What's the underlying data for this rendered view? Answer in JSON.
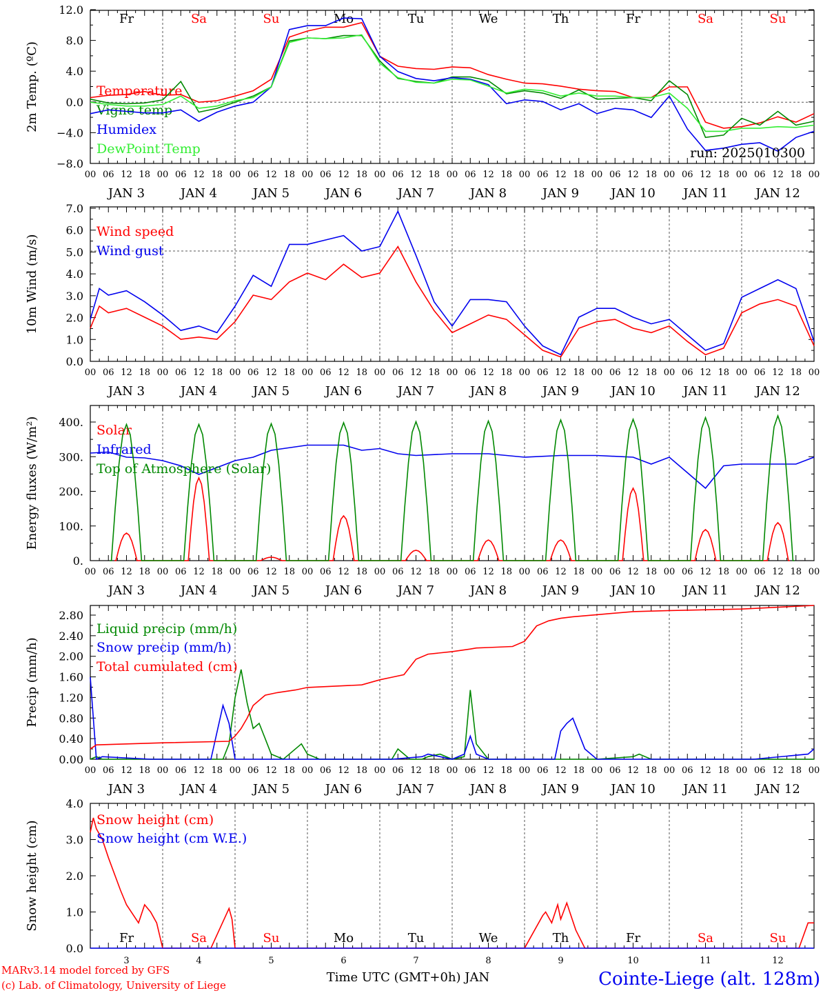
{
  "run_label": "run: 2025010300",
  "footer": {
    "model": "MARv3.14 model forced by GFS",
    "lab": "(c) Lab. of Climatology, University of Liege",
    "time_axis": "Time UTC (GMT+0h) JAN",
    "station": "Cointe-Liege (alt. 128m)"
  },
  "colors": {
    "red": "#ff0000",
    "green": "#008800",
    "blue": "#0000ee",
    "lightgreen": "#33ee33",
    "weekend": "#ff0000",
    "weekday": "#000000"
  },
  "hour_ticks": [
    "00",
    "06",
    "12",
    "18"
  ],
  "days": [
    {
      "date": "JAN  3",
      "short": "3",
      "dow": "Fr",
      "weekend": false
    },
    {
      "date": "JAN  4",
      "short": "4",
      "dow": "Sa",
      "weekend": true
    },
    {
      "date": "JAN  5",
      "short": "5",
      "dow": "Su",
      "weekend": true
    },
    {
      "date": "JAN  6",
      "short": "6",
      "dow": "Mo",
      "weekend": false
    },
    {
      "date": "JAN  7",
      "short": "7",
      "dow": "Tu",
      "weekend": false
    },
    {
      "date": "JAN  8",
      "short": "8",
      "dow": "We",
      "weekend": false
    },
    {
      "date": "JAN  9",
      "short": "9",
      "dow": "Th",
      "weekend": false
    },
    {
      "date": "JAN 10",
      "short": "10",
      "dow": "Fr",
      "weekend": false
    },
    {
      "date": "JAN 11",
      "short": "11",
      "dow": "Sa",
      "weekend": true
    },
    {
      "date": "JAN 12",
      "short": "12",
      "dow": "Su",
      "weekend": true
    }
  ],
  "chart_data": [
    {
      "type": "line",
      "ylabel": "2m Temp. (ºC)",
      "ylim": [
        -8,
        12
      ],
      "ytick_labels": [
        "12.0",
        "8.0",
        "4.0",
        "0.0",
        "−4.0",
        "−8.0"
      ],
      "ref_line": 0,
      "x_unit": "hours since JAN 3 00 UTC",
      "series": [
        {
          "name": "Temperature",
          "color": "red",
          "x": [
            0,
            6,
            12,
            18,
            24,
            30,
            36,
            42,
            48,
            54,
            60,
            66,
            72,
            78,
            84,
            90,
            96,
            102,
            108,
            114,
            120,
            126,
            132,
            138,
            144,
            150,
            156,
            162,
            168,
            174,
            180,
            186,
            192,
            198,
            204,
            210,
            216,
            222,
            228,
            234,
            240
          ],
          "y": [
            0.6,
            0.9,
            1.0,
            1.4,
            0.9,
            1.0,
            0.0,
            0.2,
            0.8,
            1.5,
            3.0,
            8.5,
            9.3,
            9.8,
            9.8,
            10.4,
            6.0,
            4.7,
            4.4,
            4.3,
            4.6,
            4.5,
            3.6,
            3.0,
            2.5,
            2.4,
            2.1,
            1.7,
            1.5,
            1.4,
            0.6,
            0.6,
            2.0,
            2.0,
            -2.6,
            -3.4,
            -3.2,
            -2.7,
            -1.9,
            -2.6,
            -1.5
          ]
        },
        {
          "name": "Vigne temp",
          "color": "green",
          "x": [
            0,
            6,
            12,
            18,
            24,
            30,
            36,
            42,
            48,
            54,
            60,
            66,
            72,
            78,
            84,
            90,
            96,
            102,
            108,
            114,
            120,
            126,
            132,
            138,
            144,
            150,
            156,
            162,
            168,
            174,
            180,
            186,
            192,
            198,
            204,
            210,
            216,
            222,
            228,
            234,
            240
          ],
          "y": [
            0.4,
            -0.1,
            -0.2,
            -0.1,
            0.3,
            2.7,
            -1.3,
            -0.8,
            0.0,
            0.8,
            2.0,
            8.0,
            8.4,
            8.3,
            8.7,
            8.7,
            5.4,
            3.1,
            2.7,
            2.5,
            3.3,
            3.3,
            2.8,
            1.1,
            1.5,
            1.2,
            0.5,
            1.6,
            0.4,
            0.5,
            0.6,
            0.2,
            2.8,
            1.0,
            -4.6,
            -4.3,
            -2.1,
            -3.0,
            -1.2,
            -3.0,
            -2.5
          ]
        },
        {
          "name": "Humidex",
          "color": "blue",
          "x": [
            0,
            6,
            12,
            18,
            24,
            30,
            36,
            42,
            48,
            54,
            60,
            66,
            72,
            78,
            84,
            90,
            96,
            102,
            108,
            114,
            120,
            126,
            132,
            138,
            144,
            150,
            156,
            162,
            168,
            174,
            180,
            186,
            192,
            198,
            204,
            210,
            216,
            222,
            228,
            234,
            240
          ],
          "y": [
            -1.5,
            -1.0,
            -1.2,
            -1.4,
            -1.4,
            -1.0,
            -2.5,
            -1.3,
            -0.5,
            0.0,
            2.0,
            9.5,
            10.0,
            10.0,
            11.0,
            10.9,
            6.0,
            4.0,
            3.1,
            2.8,
            3.2,
            3.0,
            2.3,
            -0.2,
            0.3,
            0.1,
            -1.0,
            -0.2,
            -1.5,
            -0.8,
            -1.0,
            -2.0,
            0.8,
            -3.5,
            -6.3,
            -6.0,
            -5.5,
            -5.3,
            -6.4,
            -4.6,
            -3.8
          ]
        },
        {
          "name": "DewPoint Temp",
          "color": "lightgreen",
          "x": [
            0,
            6,
            12,
            18,
            24,
            30,
            36,
            42,
            48,
            54,
            60,
            66,
            72,
            78,
            84,
            90,
            96,
            102,
            108,
            114,
            120,
            126,
            132,
            138,
            144,
            150,
            156,
            162,
            168,
            174,
            180,
            186,
            192,
            198,
            204,
            210,
            216,
            222,
            228,
            234,
            240
          ],
          "y": [
            0.0,
            -0.3,
            -0.5,
            -0.5,
            -0.3,
            0.8,
            -0.8,
            -0.5,
            0.2,
            0.6,
            2.0,
            7.8,
            8.4,
            8.3,
            8.4,
            8.8,
            5.1,
            3.2,
            2.6,
            2.5,
            3.0,
            2.9,
            2.1,
            1.2,
            1.7,
            1.5,
            0.8,
            1.2,
            0.8,
            0.8,
            0.6,
            0.6,
            1.2,
            -0.8,
            -3.8,
            -3.8,
            -3.4,
            -3.4,
            -3.2,
            -3.3,
            -3.0
          ]
        }
      ]
    },
    {
      "type": "line",
      "ylabel": "10m Wind (m/s)",
      "ylim": [
        0,
        7
      ],
      "ytick_labels": [
        "7.0",
        "6.0",
        "5.0",
        "4.0",
        "3.0",
        "2.0",
        "1.0",
        "0.0"
      ],
      "ref_line": 5,
      "x_unit": "hours since JAN 3 00 UTC",
      "series": [
        {
          "name": "Wind speed",
          "color": "red",
          "x": [
            0,
            3,
            6,
            12,
            18,
            24,
            30,
            36,
            42,
            48,
            54,
            60,
            66,
            72,
            78,
            84,
            90,
            96,
            102,
            108,
            114,
            120,
            126,
            132,
            138,
            144,
            150,
            156,
            162,
            168,
            174,
            180,
            186,
            192,
            198,
            204,
            210,
            216,
            222,
            228,
            234,
            240
          ],
          "y": [
            1.5,
            2.5,
            2.2,
            2.4,
            2.0,
            1.6,
            1.0,
            1.1,
            1.0,
            1.8,
            3.0,
            2.8,
            3.6,
            4.0,
            3.7,
            4.4,
            3.8,
            4.0,
            5.2,
            3.6,
            2.3,
            1.3,
            1.7,
            2.1,
            1.9,
            1.2,
            0.5,
            0.2,
            1.5,
            1.8,
            1.9,
            1.5,
            1.3,
            1.6,
            0.9,
            0.3,
            0.6,
            2.2,
            2.6,
            2.8,
            2.5,
            0.7
          ]
        },
        {
          "name": "Wind gust",
          "color": "blue",
          "x": [
            0,
            3,
            6,
            12,
            18,
            24,
            30,
            36,
            42,
            48,
            54,
            60,
            66,
            72,
            78,
            84,
            90,
            96,
            102,
            108,
            114,
            120,
            126,
            132,
            138,
            144,
            150,
            156,
            162,
            168,
            174,
            180,
            186,
            192,
            198,
            204,
            210,
            216,
            222,
            228,
            234,
            240
          ],
          "y": [
            1.9,
            3.3,
            3.0,
            3.2,
            2.7,
            2.1,
            1.4,
            1.6,
            1.3,
            2.5,
            3.9,
            3.4,
            5.3,
            5.3,
            5.5,
            5.7,
            5.0,
            5.2,
            6.8,
            4.8,
            2.7,
            1.6,
            2.8,
            2.8,
            2.7,
            1.6,
            0.7,
            0.3,
            2.0,
            2.4,
            2.4,
            2.0,
            1.7,
            1.9,
            1.2,
            0.5,
            0.8,
            2.9,
            3.3,
            3.7,
            3.3,
            0.9
          ]
        }
      ]
    },
    {
      "type": "line",
      "ylabel": "Energy fluxes (W/m²)",
      "ylim": [
        0,
        450
      ],
      "ytick_labels": [
        "400.",
        "300.",
        "200.",
        "100.",
        "0."
      ],
      "x_unit": "hours since JAN 3 00 UTC",
      "series": [
        {
          "name": "Solar",
          "color": "red",
          "daily_peaks": [
            80,
            240,
            10,
            130,
            30,
            60,
            60,
            210,
            90,
            110
          ]
        },
        {
          "name": "Infrared",
          "color": "blue",
          "x": [
            0,
            6,
            12,
            18,
            24,
            30,
            36,
            42,
            48,
            54,
            60,
            72,
            84,
            90,
            96,
            102,
            108,
            120,
            132,
            144,
            156,
            168,
            180,
            186,
            192,
            198,
            204,
            210,
            216,
            228,
            234,
            240
          ],
          "y": [
            312,
            315,
            300,
            298,
            290,
            275,
            250,
            270,
            290,
            300,
            320,
            335,
            335,
            320,
            325,
            310,
            305,
            310,
            310,
            300,
            305,
            305,
            300,
            280,
            300,
            255,
            210,
            275,
            280,
            280,
            280,
            300
          ]
        },
        {
          "name": "Top of Atmosphere (Solar)",
          "color": "green",
          "daily_peaks": [
            395,
            395,
            397,
            400,
            403,
            405,
            408,
            410,
            415,
            420
          ]
        }
      ]
    },
    {
      "type": "line",
      "ylabel": "Precip (mm/h)",
      "ylim": [
        0,
        3.0
      ],
      "ytick_labels": [
        "2.80",
        "2.40",
        "2.00",
        "1.60",
        "1.20",
        "0.80",
        "0.40",
        "0.00"
      ],
      "x_unit": "hours since JAN 3 00 UTC",
      "series": [
        {
          "name": "Liquid precip (mm/h)",
          "color": "green",
          "x": [
            0,
            2,
            4,
            20,
            40,
            44,
            46,
            48,
            50,
            52,
            54,
            56,
            58,
            60,
            64,
            70,
            72,
            76,
            90,
            96,
            100,
            102,
            106,
            110,
            112,
            116,
            120,
            124,
            126,
            128,
            132,
            144,
            168,
            180,
            182,
            186,
            190,
            200,
            220,
            240
          ],
          "y": [
            0.0,
            0.05,
            0.0,
            0.0,
            0.0,
            0.0,
            0.3,
            1.2,
            1.75,
            1.1,
            0.6,
            0.7,
            0.4,
            0.1,
            0.0,
            0.3,
            0.1,
            0.0,
            0.0,
            0.0,
            0.0,
            0.2,
            0.0,
            0.0,
            0.05,
            0.1,
            0.0,
            0.05,
            1.35,
            0.3,
            0.0,
            0.0,
            0.0,
            0.05,
            0.1,
            0.0,
            0.0,
            0.0,
            0.0,
            0.0
          ]
        },
        {
          "name": "Snow precip (mm/h)",
          "color": "blue",
          "x": [
            0,
            2,
            4,
            20,
            40,
            44,
            46,
            48,
            50,
            54,
            60,
            96,
            100,
            110,
            112,
            116,
            120,
            124,
            126,
            128,
            132,
            144,
            150,
            154,
            156,
            158,
            160,
            162,
            164,
            168,
            180,
            200,
            220,
            238,
            240
          ],
          "y": [
            1.6,
            0.0,
            0.05,
            0.0,
            0.0,
            1.05,
            0.7,
            0.0,
            0.0,
            0.0,
            0.0,
            0.0,
            0.0,
            0.05,
            0.1,
            0.05,
            0.0,
            0.1,
            0.45,
            0.1,
            0.0,
            0.0,
            0.0,
            0.0,
            0.55,
            0.7,
            0.8,
            0.5,
            0.2,
            0.0,
            0.0,
            0.0,
            0.0,
            0.1,
            0.2
          ]
        },
        {
          "name": "Total cumulated (cm)",
          "color": "red",
          "x": [
            0,
            2,
            24,
            46,
            48,
            50,
            52,
            54,
            58,
            62,
            68,
            72,
            90,
            96,
            100,
            104,
            108,
            112,
            120,
            126,
            128,
            132,
            140,
            144,
            148,
            152,
            156,
            160,
            168,
            180,
            192,
            216,
            240
          ],
          "y": [
            0.2,
            0.28,
            0.32,
            0.35,
            0.45,
            0.6,
            0.8,
            1.05,
            1.25,
            1.3,
            1.35,
            1.4,
            1.45,
            1.55,
            1.6,
            1.65,
            1.95,
            2.05,
            2.1,
            2.15,
            2.17,
            2.18,
            2.2,
            2.3,
            2.6,
            2.7,
            2.75,
            2.78,
            2.82,
            2.88,
            2.9,
            2.93,
            3.0
          ]
        }
      ]
    },
    {
      "type": "line",
      "ylabel": "Snow height (cm)",
      "ylim": [
        0,
        4
      ],
      "ytick_labels": [
        "4.0",
        "3.0",
        "2.0",
        "1.0",
        "0.0"
      ],
      "x_unit": "hours since JAN 3 00 UTC",
      "series": [
        {
          "name": "Snow height (cm)",
          "color": "red",
          "x": [
            0,
            1,
            2,
            4,
            6,
            10,
            12,
            16,
            18,
            20,
            22,
            24,
            40,
            46,
            47,
            48,
            48.5,
            76,
            144,
            150,
            151,
            153,
            155,
            156,
            158,
            159,
            161,
            164,
            166,
            235,
            238,
            240
          ],
          "y": [
            3.2,
            3.6,
            3.3,
            3.0,
            2.5,
            1.6,
            1.2,
            0.7,
            1.2,
            1.0,
            0.7,
            0.0,
            0.0,
            1.1,
            0.8,
            0.0,
            0.0,
            0.0,
            0.0,
            0.9,
            1.0,
            0.7,
            1.2,
            0.8,
            1.25,
            1.0,
            0.5,
            0.0,
            0.0,
            0.0,
            0.7,
            0.7
          ]
        },
        {
          "name": "Snow height (cm W.E.)",
          "color": "blue",
          "x": [
            0,
            240
          ],
          "y": [
            0,
            0
          ]
        }
      ]
    }
  ]
}
